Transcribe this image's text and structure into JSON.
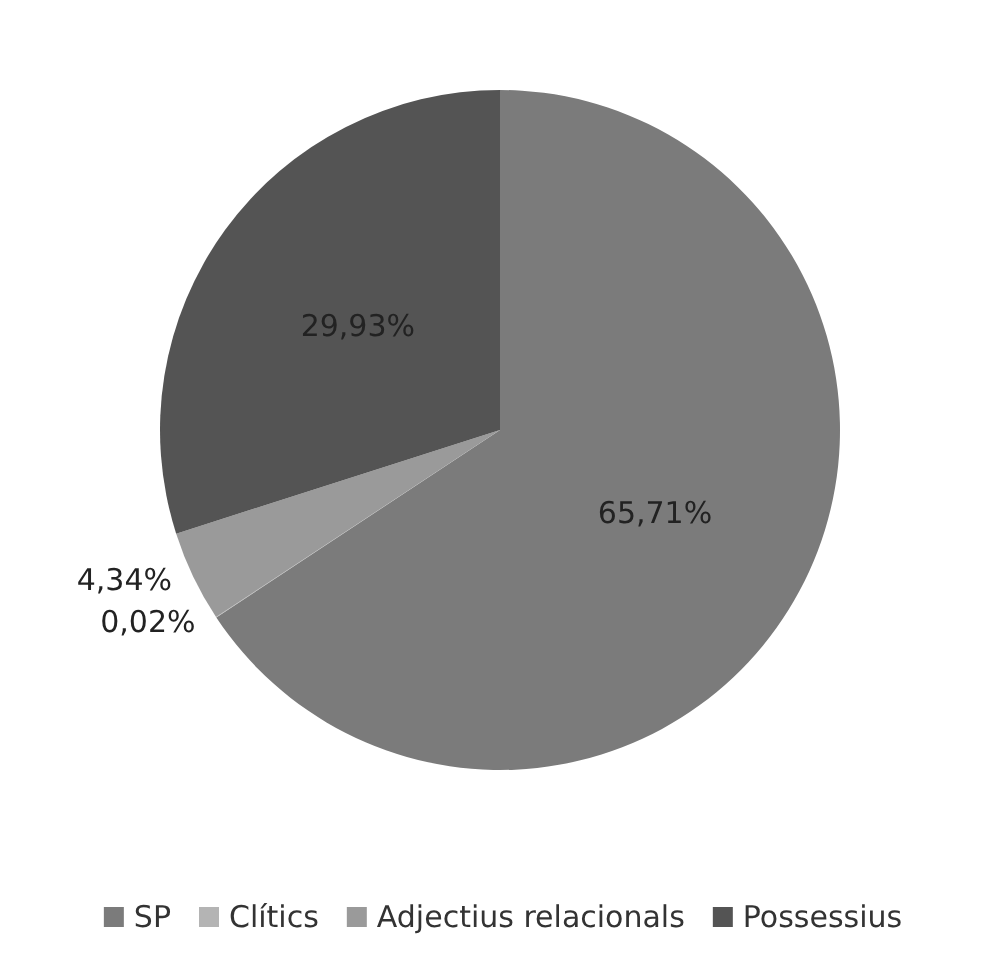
{
  "chart_data": {
    "type": "pie",
    "categories": [
      "SP",
      "Clítics",
      "Adjectius relacionals",
      "Possessius"
    ],
    "values": [
      65.71,
      0.02,
      4.34,
      29.93
    ],
    "value_labels": [
      "65,71%",
      "0,02%",
      "4,34%",
      "29,93%"
    ],
    "colors": [
      "#7b7b7b",
      "#b4b4b4",
      "#9a9a9a",
      "#545454"
    ],
    "legend": "bottom"
  }
}
